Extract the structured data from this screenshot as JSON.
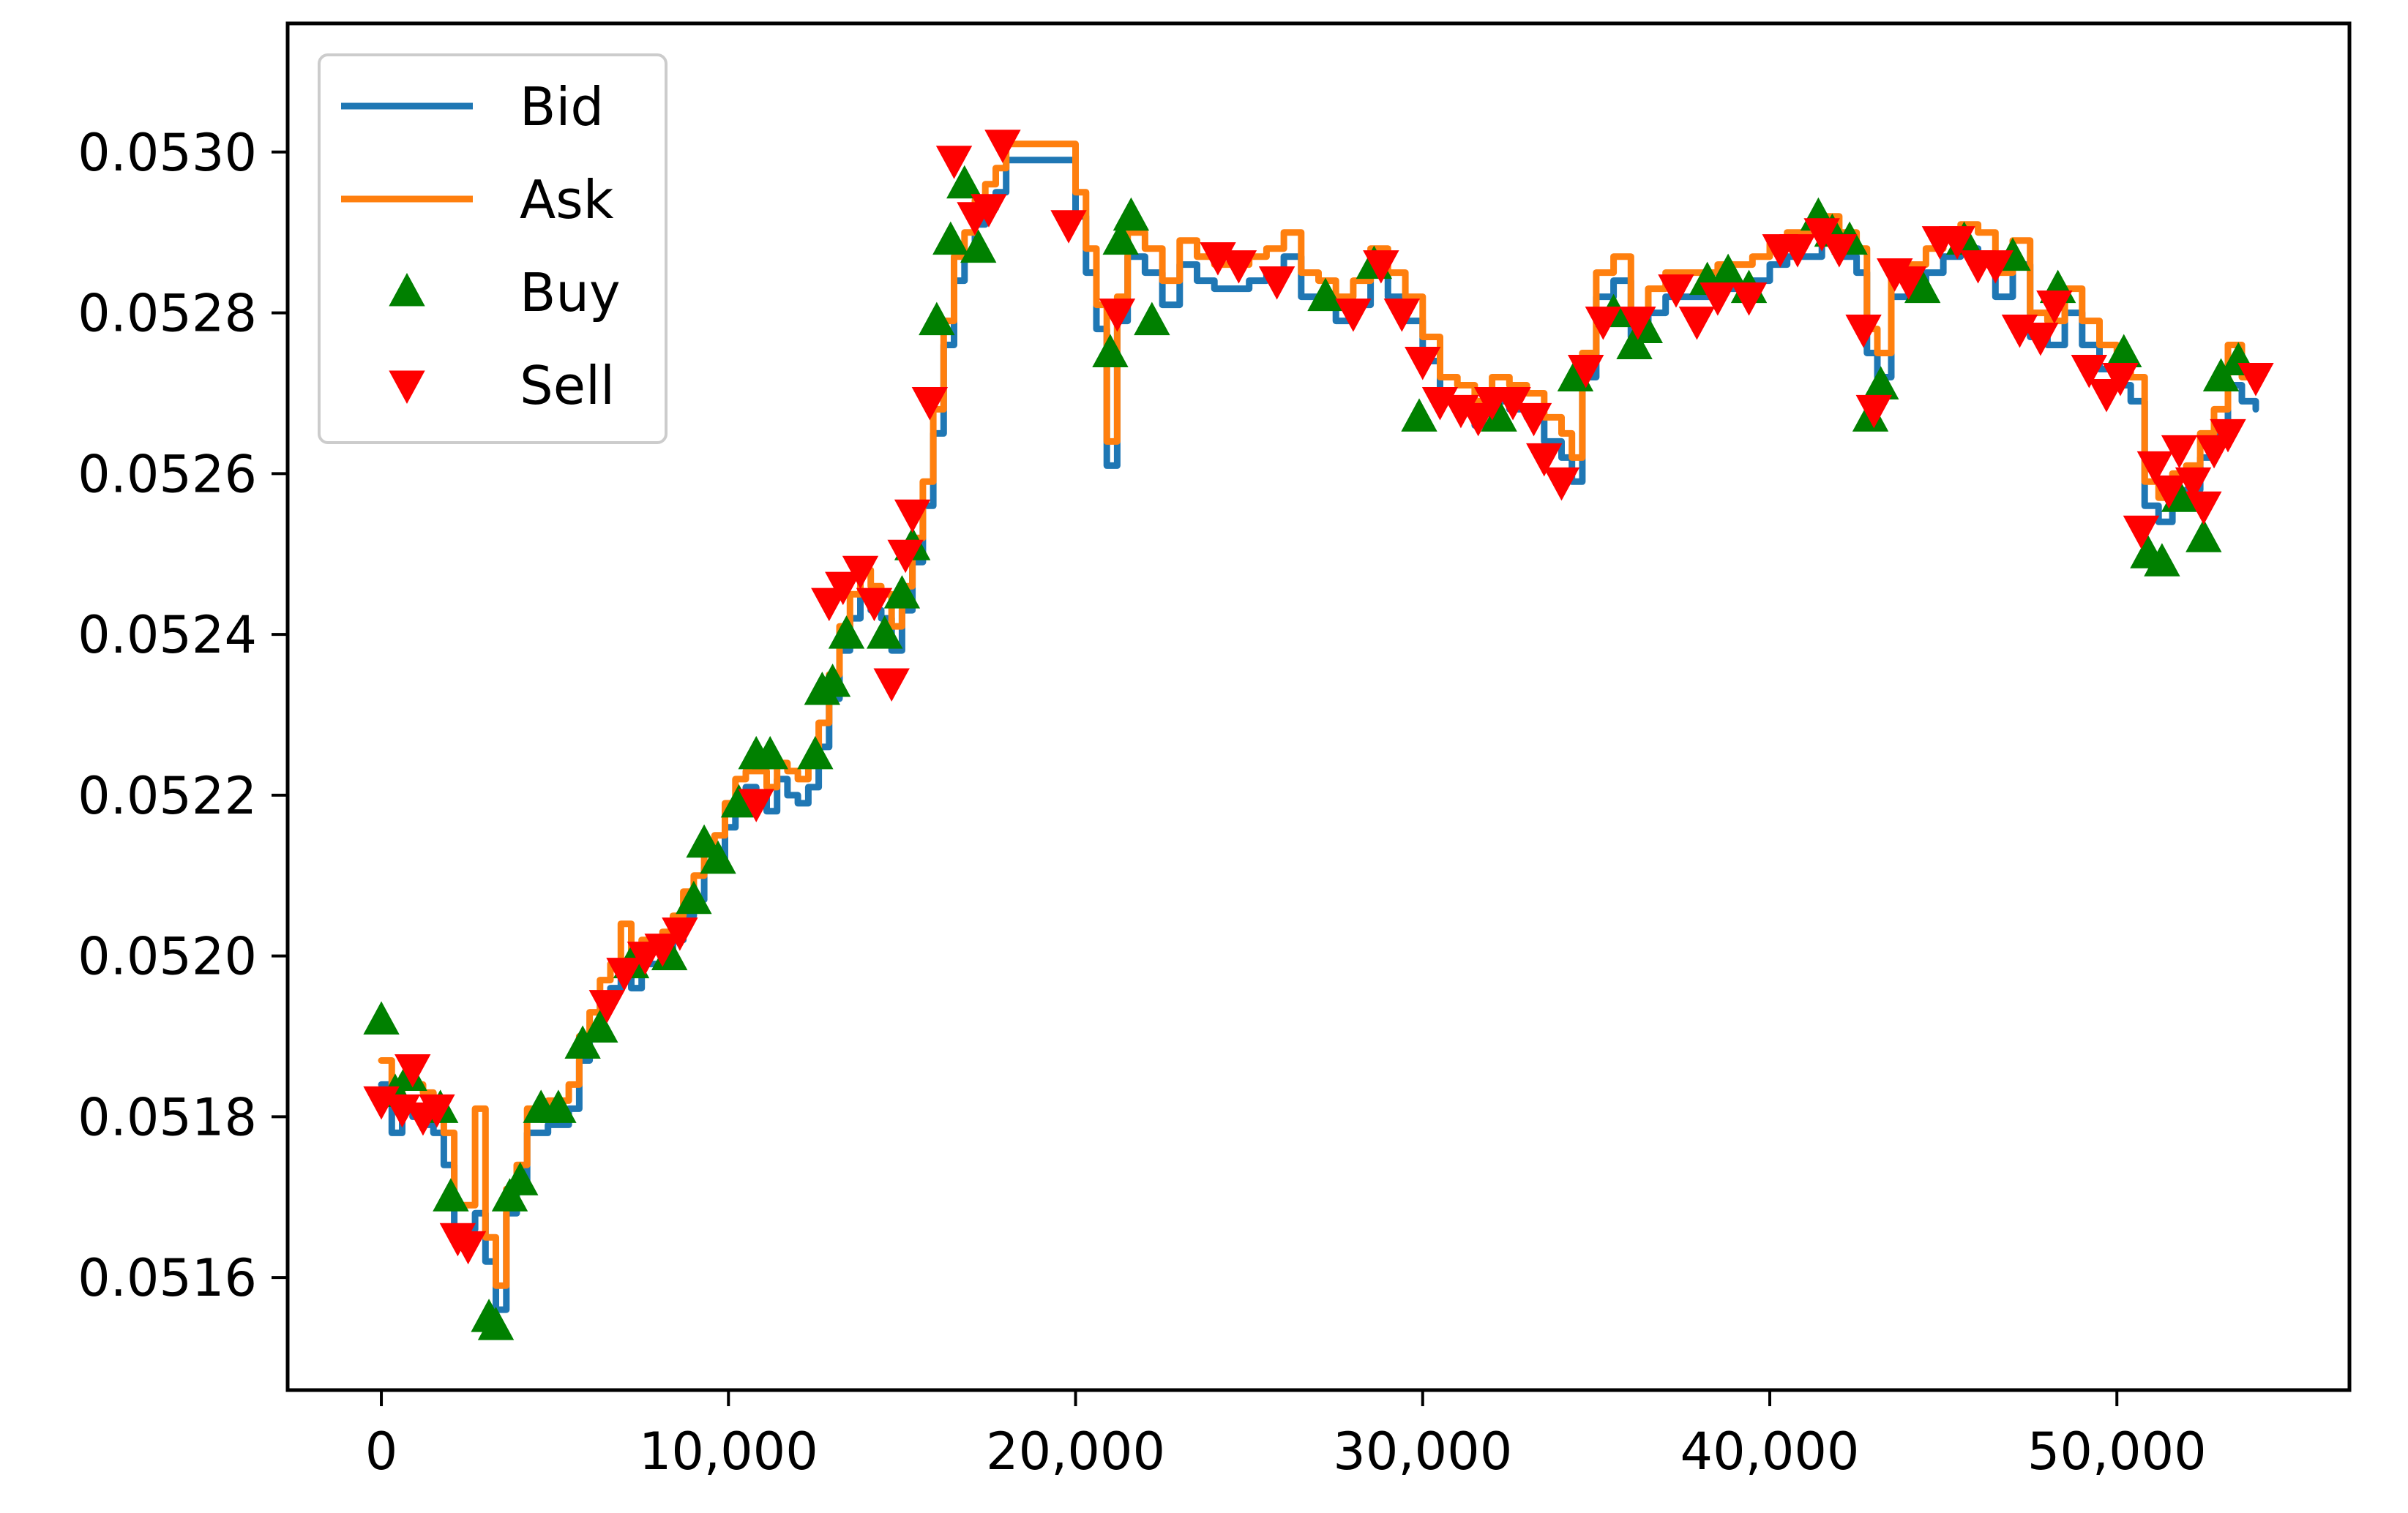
{
  "chart_data": {
    "type": "line",
    "title": "",
    "xlabel": "",
    "ylabel": "",
    "xlim": [
      -2700,
      56700
    ],
    "ylim": [
      0.05146,
      0.05316
    ],
    "x_ticks": [
      0,
      10000,
      20000,
      30000,
      40000,
      50000
    ],
    "x_tick_labels": [
      "0",
      "10,000",
      "20,000",
      "30,000",
      "40,000",
      "50,000"
    ],
    "y_ticks": [
      0.0516,
      0.0518,
      0.052,
      0.0522,
      0.0524,
      0.0526,
      0.0528,
      0.053
    ],
    "y_tick_labels": [
      "0.0516",
      "0.0518",
      "0.0520",
      "0.0522",
      "0.0524",
      "0.0526",
      "0.0528",
      "0.0530"
    ],
    "grid": false,
    "legend": {
      "position": "top-left",
      "entries": [
        "Bid",
        "Ask",
        "Buy",
        "Sell"
      ]
    },
    "colors": {
      "bid": "#1f77b4",
      "ask": "#ff7f0e",
      "buy": "#008000",
      "sell": "#ff0000"
    },
    "series": [
      {
        "name": "Bid",
        "kind": "line",
        "x": [
          0,
          300,
          600,
          900,
          1200,
          1500,
          1800,
          2100,
          2400,
          2700,
          3000,
          3300,
          3600,
          3900,
          4200,
          4500,
          4800,
          5100,
          5400,
          5700,
          6000,
          6300,
          6600,
          6900,
          7200,
          7500,
          7800,
          8100,
          8400,
          8700,
          9000,
          9300,
          9600,
          9900,
          10200,
          10500,
          10800,
          11100,
          11400,
          11700,
          12000,
          12300,
          12600,
          12900,
          13200,
          13500,
          13800,
          14100,
          14400,
          14700,
          15000,
          15300,
          15600,
          15900,
          16200,
          16500,
          16800,
          17100,
          17400,
          17700,
          18000,
          18500,
          19000,
          19500,
          20000,
          20300,
          20600,
          20900,
          21200,
          21500,
          22000,
          22500,
          23000,
          23500,
          24000,
          24500,
          25000,
          25500,
          26000,
          26500,
          27000,
          27500,
          28000,
          28500,
          29000,
          29500,
          30000,
          30500,
          31000,
          31500,
          32000,
          32500,
          33000,
          33500,
          34000,
          34300,
          34600,
          35000,
          35500,
          36000,
          36500,
          37000,
          37500,
          38000,
          38500,
          39000,
          39500,
          40000,
          40500,
          41000,
          41500,
          42000,
          42500,
          42800,
          43100,
          43500,
          44000,
          44500,
          45000,
          45500,
          46000,
          46500,
          47000,
          47500,
          48000,
          48500,
          49000,
          49500,
          50000,
          50400,
          50800,
          51200,
          51600,
          52000,
          52400,
          52800,
          53200,
          53600,
          54000
        ],
        "y": [
          0.05184,
          0.05178,
          0.05181,
          0.0518,
          0.05179,
          0.05178,
          0.05174,
          0.05166,
          0.05166,
          0.05168,
          0.05162,
          0.05156,
          0.05168,
          0.05171,
          0.05178,
          0.05178,
          0.05179,
          0.05179,
          0.05181,
          0.05187,
          0.0519,
          0.05194,
          0.05196,
          0.05198,
          0.05196,
          0.05199,
          0.05199,
          0.052,
          0.05202,
          0.05205,
          0.05207,
          0.05211,
          0.05212,
          0.05216,
          0.05219,
          0.05221,
          0.0522,
          0.05218,
          0.05222,
          0.0522,
          0.05219,
          0.05221,
          0.05226,
          0.05232,
          0.05238,
          0.05242,
          0.05245,
          0.05243,
          0.05242,
          0.05238,
          0.05243,
          0.05249,
          0.05256,
          0.05265,
          0.05276,
          0.05284,
          0.05287,
          0.05291,
          0.05293,
          0.05295,
          0.05299,
          0.05299,
          0.05299,
          0.05299,
          0.05292,
          0.05285,
          0.05278,
          0.05261,
          0.05279,
          0.05287,
          0.05285,
          0.05281,
          0.05286,
          0.05284,
          0.05283,
          0.05283,
          0.05284,
          0.05285,
          0.05287,
          0.05282,
          0.05281,
          0.05279,
          0.05281,
          0.05285,
          0.05282,
          0.05279,
          0.05274,
          0.05269,
          0.05268,
          0.05266,
          0.05269,
          0.05268,
          0.05267,
          0.05264,
          0.05262,
          0.05259,
          0.05272,
          0.05282,
          0.05284,
          0.05277,
          0.0528,
          0.05282,
          0.05282,
          0.05282,
          0.05283,
          0.05283,
          0.05284,
          0.05286,
          0.05287,
          0.05287,
          0.05289,
          0.05287,
          0.05285,
          0.05275,
          0.05272,
          0.05282,
          0.05283,
          0.05285,
          0.05287,
          0.05288,
          0.05287,
          0.05282,
          0.05286,
          0.05277,
          0.05276,
          0.0528,
          0.05276,
          0.05273,
          0.05271,
          0.05269,
          0.05256,
          0.05254,
          0.05257,
          0.05258,
          0.05262,
          0.05265,
          0.05271,
          0.05269,
          0.05268
        ]
      },
      {
        "name": "Ask",
        "kind": "line",
        "x": [
          0,
          300,
          600,
          900,
          1200,
          1500,
          1800,
          2100,
          2400,
          2700,
          3000,
          3300,
          3600,
          3900,
          4200,
          4500,
          4800,
          5100,
          5400,
          5700,
          6000,
          6300,
          6600,
          6900,
          7200,
          7500,
          7800,
          8100,
          8400,
          8700,
          9000,
          9300,
          9600,
          9900,
          10200,
          10500,
          10800,
          11100,
          11400,
          11700,
          12000,
          12300,
          12600,
          12900,
          13200,
          13500,
          13800,
          14100,
          14400,
          14700,
          15000,
          15300,
          15600,
          15900,
          16200,
          16500,
          16800,
          17100,
          17400,
          17700,
          18000,
          18500,
          19000,
          19500,
          20000,
          20300,
          20600,
          20900,
          21200,
          21500,
          22000,
          22500,
          23000,
          23500,
          24000,
          24500,
          25000,
          25500,
          26000,
          26500,
          27000,
          27500,
          28000,
          28500,
          29000,
          29500,
          30000,
          30500,
          31000,
          31500,
          32000,
          32500,
          33000,
          33500,
          34000,
          34300,
          34600,
          35000,
          35500,
          36000,
          36500,
          37000,
          37500,
          38000,
          38500,
          39000,
          39500,
          40000,
          40500,
          41000,
          41500,
          42000,
          42500,
          42800,
          43100,
          43500,
          44000,
          44500,
          45000,
          45500,
          46000,
          46500,
          47000,
          47500,
          48000,
          48500,
          49000,
          49500,
          50000,
          50400,
          50800,
          51200,
          51600,
          52000,
          52400,
          52800,
          53200,
          53600,
          54000
        ],
        "y": [
          0.05187,
          0.05182,
          0.05185,
          0.05184,
          0.05183,
          0.05182,
          0.05178,
          0.05169,
          0.05169,
          0.05181,
          0.05165,
          0.05159,
          0.05171,
          0.05174,
          0.05181,
          0.05181,
          0.05182,
          0.05182,
          0.05184,
          0.0519,
          0.05193,
          0.05197,
          0.05199,
          0.05204,
          0.05199,
          0.05202,
          0.05202,
          0.05203,
          0.05205,
          0.05208,
          0.0521,
          0.05214,
          0.05215,
          0.05219,
          0.05222,
          0.05223,
          0.05223,
          0.05221,
          0.05224,
          0.05223,
          0.05222,
          0.05224,
          0.05229,
          0.05235,
          0.05241,
          0.05245,
          0.05248,
          0.05246,
          0.05245,
          0.05241,
          0.05246,
          0.05252,
          0.05259,
          0.05268,
          0.05279,
          0.05287,
          0.0529,
          0.05294,
          0.05296,
          0.05298,
          0.05301,
          0.05301,
          0.05301,
          0.05301,
          0.05295,
          0.05288,
          0.05281,
          0.05264,
          0.05282,
          0.0529,
          0.05288,
          0.05284,
          0.05289,
          0.05287,
          0.05286,
          0.05286,
          0.05287,
          0.05288,
          0.0529,
          0.05285,
          0.05284,
          0.05282,
          0.05284,
          0.05288,
          0.05285,
          0.05282,
          0.05277,
          0.05272,
          0.05271,
          0.05269,
          0.05272,
          0.05271,
          0.0527,
          0.05267,
          0.05265,
          0.05262,
          0.05275,
          0.05285,
          0.05287,
          0.0528,
          0.05283,
          0.05285,
          0.05285,
          0.05285,
          0.05286,
          0.05286,
          0.05287,
          0.05289,
          0.0529,
          0.0529,
          0.05292,
          0.0529,
          0.05288,
          0.05278,
          0.05275,
          0.05285,
          0.05286,
          0.05288,
          0.0529,
          0.05291,
          0.0529,
          0.05285,
          0.05289,
          0.0528,
          0.05279,
          0.05283,
          0.05279,
          0.05276,
          0.05274,
          0.05272,
          0.05259,
          0.05257,
          0.0526,
          0.05261,
          0.05265,
          0.05268,
          0.05276,
          0.05272,
          0.05271
        ]
      },
      {
        "name": "Buy",
        "kind": "scatter",
        "marker": "triangle-up",
        "x": [
          0,
          400,
          800,
          1700,
          2000,
          3100,
          3300,
          3700,
          4000,
          4600,
          5100,
          5800,
          6300,
          7200,
          8300,
          9000,
          9300,
          9700,
          10300,
          10800,
          11200,
          12500,
          12700,
          13000,
          13400,
          14500,
          15000,
          15300,
          16000,
          16400,
          16800,
          17200,
          21000,
          21300,
          21600,
          22200,
          27200,
          28600,
          29900,
          32200,
          34400,
          35500,
          36100,
          36400,
          38200,
          38800,
          39400,
          41400,
          41800,
          42300,
          42900,
          43200,
          44400,
          45600,
          47000,
          48300,
          50200,
          50900,
          51300,
          51800,
          52500,
          53000,
          53500
        ],
        "y": [
          0.05192,
          0.05183,
          0.05185,
          0.05181,
          0.0517,
          0.05155,
          0.05154,
          0.0517,
          0.05172,
          0.05181,
          0.05181,
          0.05189,
          0.05191,
          0.05199,
          0.052,
          0.05207,
          0.05214,
          0.05212,
          0.05219,
          0.05225,
          0.05225,
          0.05225,
          0.05233,
          0.05234,
          0.0524,
          0.0524,
          0.05245,
          0.05251,
          0.05279,
          0.05289,
          0.05296,
          0.05288,
          0.05275,
          0.05289,
          0.05292,
          0.05279,
          0.05282,
          0.05286,
          0.05267,
          0.05267,
          0.05272,
          0.0528,
          0.05276,
          0.05278,
          0.05284,
          0.05285,
          0.05283,
          0.05292,
          0.0529,
          0.05289,
          0.05267,
          0.05271,
          0.05283,
          0.05289,
          0.05287,
          0.05283,
          0.05275,
          0.0525,
          0.05249,
          0.05257,
          0.05252,
          0.05272,
          0.05274
        ]
      },
      {
        "name": "Sell",
        "kind": "scatter",
        "marker": "triangle-down",
        "x": [
          0,
          600,
          900,
          1200,
          1600,
          2200,
          2500,
          6500,
          7000,
          7600,
          8100,
          8600,
          10800,
          12900,
          13300,
          13800,
          14200,
          14700,
          15100,
          15300,
          15800,
          16500,
          17100,
          17500,
          17900,
          19800,
          21200,
          24100,
          24700,
          25800,
          28000,
          28800,
          29400,
          30000,
          30500,
          31100,
          31600,
          32000,
          32600,
          33200,
          33500,
          34000,
          34700,
          35200,
          36200,
          37300,
          37900,
          38500,
          39400,
          40300,
          40800,
          41500,
          42000,
          42700,
          43000,
          43600,
          44000,
          44900,
          45400,
          46000,
          46500,
          47200,
          47800,
          48200,
          49200,
          49700,
          50100,
          50700,
          51100,
          51500,
          51800,
          52200,
          52500,
          52800,
          53200,
          54000
        ],
        "y": [
          0.05182,
          0.05181,
          0.05186,
          0.0518,
          0.05181,
          0.05165,
          0.05164,
          0.05194,
          0.05198,
          0.052,
          0.05201,
          0.05203,
          0.05219,
          0.05244,
          0.05246,
          0.05248,
          0.05244,
          0.05234,
          0.0525,
          0.05255,
          0.05269,
          0.05299,
          0.05292,
          0.05293,
          0.05301,
          0.05291,
          0.0528,
          0.05287,
          0.05286,
          0.05284,
          0.0528,
          0.05286,
          0.0528,
          0.05274,
          0.05269,
          0.05268,
          0.05267,
          0.05269,
          0.05269,
          0.05267,
          0.05262,
          0.05259,
          0.05273,
          0.05279,
          0.05279,
          0.05283,
          0.05279,
          0.05282,
          0.05282,
          0.05288,
          0.05288,
          0.0529,
          0.05288,
          0.05278,
          0.05268,
          0.05285,
          0.05284,
          0.05289,
          0.05289,
          0.05286,
          0.05286,
          0.05278,
          0.05277,
          0.05281,
          0.05273,
          0.0527,
          0.05272,
          0.05253,
          0.05261,
          0.05258,
          0.05263,
          0.05259,
          0.05256,
          0.05263,
          0.05265,
          0.05272
        ]
      }
    ]
  }
}
